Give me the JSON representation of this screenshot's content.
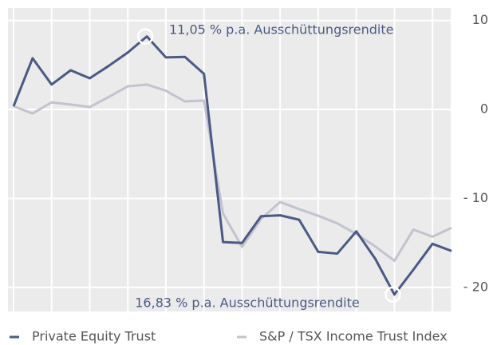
{
  "chart_data": {
    "type": "line",
    "categories": [
      null,
      null,
      null,
      null,
      null,
      null,
      null,
      null,
      null,
      null,
      null,
      null,
      null,
      null,
      null,
      null,
      null,
      null,
      null,
      null,
      null,
      null,
      null,
      null
    ],
    "series": [
      {
        "name": "Private Equity Trust",
        "color": "#4a5a85",
        "values": [
          0.36,
          5.75,
          2.8,
          4.4,
          3.5,
          4.9,
          6.4,
          8.2,
          5.85,
          5.9,
          4.0,
          -14.9,
          -15.0,
          -12.0,
          -11.9,
          -12.4,
          -16.0,
          -16.2,
          -13.7,
          -16.8,
          -20.8,
          -18.0,
          -15.1,
          -15.9
        ]
      },
      {
        "name": "S&P / TSX Income Trust Index",
        "color": "#c3c3d0",
        "values": [
          0.36,
          -0.45,
          0.8,
          0.55,
          0.27,
          1.4,
          2.6,
          2.8,
          2.1,
          0.9,
          1.0,
          -11.7,
          -15.45,
          -12.3,
          -10.4,
          -11.2,
          -11.95,
          -12.8,
          -14.0,
          -15.4,
          -17.0,
          -13.5,
          -14.3,
          -13.3
        ]
      }
    ],
    "annotations": [
      "11,05 % p.a. Ausschüttungsrendite",
      "16,83 % p.a. Ausschüttungsrendite"
    ],
    "ylim": [
      -22.7,
      11.4
    ],
    "yticks": [
      10,
      0,
      {
        "value": -10,
        "label": "- 10"
      },
      {
        "value": -20,
        "label": "- 20"
      }
    ],
    "grid": true
  }
}
